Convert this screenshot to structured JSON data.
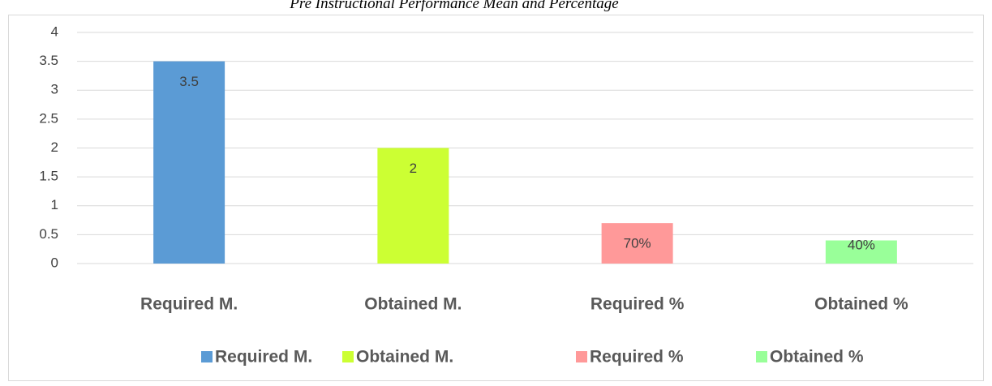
{
  "chart_data": {
    "type": "bar",
    "title": "Pre Instructional Performance Mean and Percentage",
    "categories": [
      "Required M.",
      "Obtained M.",
      "Required %",
      "Obtained %"
    ],
    "series": [
      {
        "name": "Required M.",
        "color": "#5b9bd5",
        "values": [
          3.5,
          null,
          null,
          null
        ]
      },
      {
        "name": "Obtained M.",
        "color": "#ccff33",
        "values": [
          null,
          2,
          null,
          null
        ]
      },
      {
        "name": "Required %",
        "color": "#ff9999",
        "values": [
          null,
          null,
          0.7,
          null
        ],
        "value_labels": [
          null,
          null,
          "70%",
          null
        ]
      },
      {
        "name": "Obtained %",
        "color": "#99ff99",
        "values": [
          null,
          null,
          null,
          0.4
        ],
        "value_labels": [
          null,
          null,
          null,
          "40%"
        ]
      }
    ],
    "ylim": [
      0,
      4
    ],
    "yticks": [
      0,
      0.5,
      1,
      1.5,
      2,
      2.5,
      3,
      3.5,
      4
    ],
    "grid": true,
    "legend": "bottom"
  }
}
